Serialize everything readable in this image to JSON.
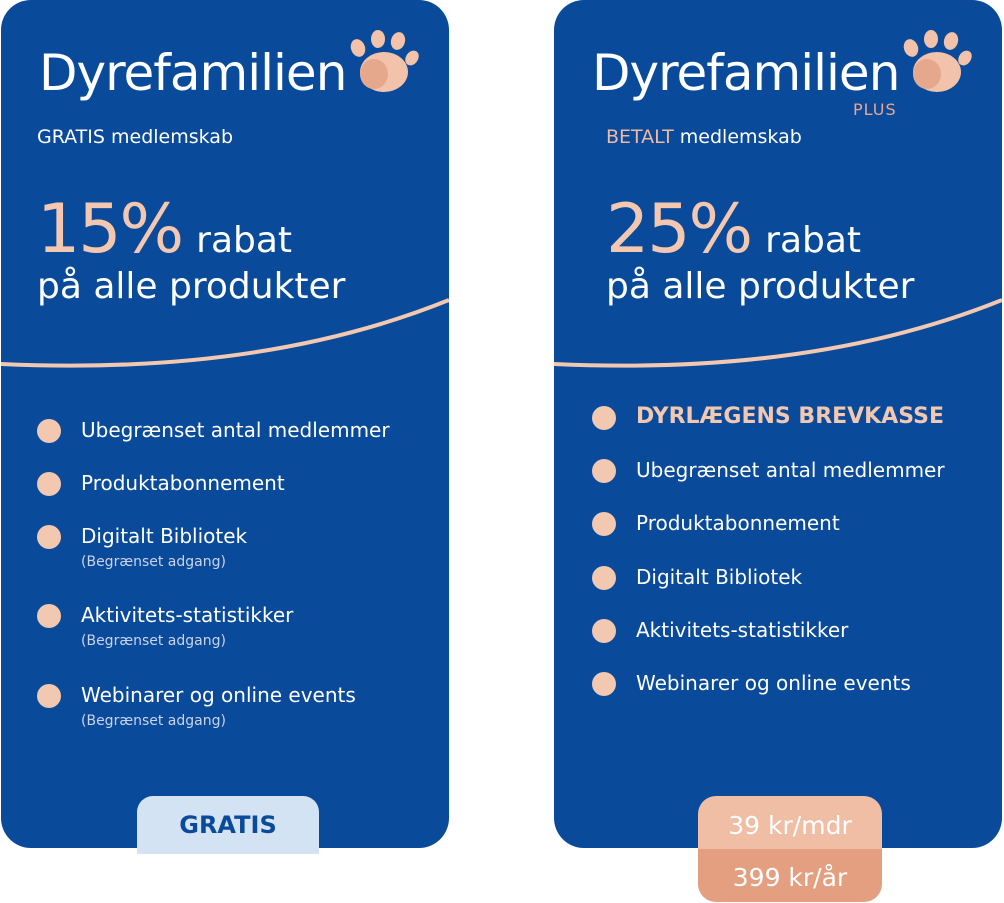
{
  "colors": {
    "card_bg": "#0a4a9a",
    "accent_peach": "#f3c8b1",
    "gratis_button_bg": "#d3e3f3",
    "price_month_bg": "#efbea5",
    "price_year_bg": "#e39f7f"
  },
  "free_card": {
    "logo_text": "Dyrefamilien",
    "logo_icon": "paw-icon",
    "membership_type": "GRATIS",
    "membership_word": "medlemskab",
    "discount_percent": "15%",
    "discount_word": "rabat",
    "discount_line2": "på alle produkter",
    "features": [
      {
        "label": "Ubegrænset antal medlemmer",
        "note": ""
      },
      {
        "label": "Produktabonnement",
        "note": ""
      },
      {
        "label": "Digitalt Bibliotek",
        "note": "(Begrænset adgang)"
      },
      {
        "label": "Aktivitets-statistikker",
        "note": "(Begrænset adgang)"
      },
      {
        "label": "Webinarer og online events",
        "note": "(Begrænset adgang)"
      }
    ],
    "price_label": "GRATIS"
  },
  "plus_card": {
    "logo_text": "Dyrefamilien",
    "logo_icon": "paw-icon",
    "plus_tag": "PLUS",
    "membership_type": "BETALT",
    "membership_word": "medlemskab",
    "discount_percent": "25%",
    "discount_word": "rabat",
    "discount_line2": "på alle produkter",
    "highlight_feature": "DYRLÆGENS BREVKASSE",
    "features": [
      {
        "label": "Ubegrænset antal medlemmer"
      },
      {
        "label": "Produktabonnement"
      },
      {
        "label": "Digitalt Bibliotek"
      },
      {
        "label": "Aktivitets-statistikker"
      },
      {
        "label": "Webinarer og online events"
      }
    ],
    "price_monthly": "39 kr/mdr",
    "price_yearly": "399 kr/år"
  }
}
